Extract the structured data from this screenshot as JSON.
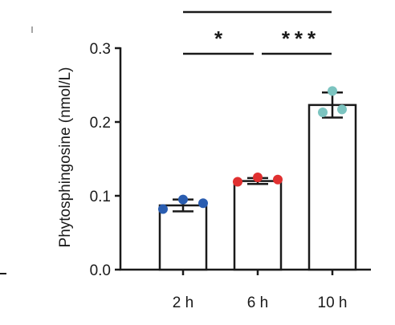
{
  "chart_data": {
    "type": "bar",
    "title": "",
    "xlabel": "",
    "ylabel": "Phytosphingosine (nmol/L)",
    "ylim": [
      0,
      0.3
    ],
    "yticks": [
      "0.0",
      "0.1",
      "0.2",
      "0.3"
    ],
    "categories": [
      "2 h",
      "6 h",
      "10 h"
    ],
    "values": [
      0.087,
      0.12,
      0.223
    ],
    "error": [
      0.008,
      0.004,
      0.017
    ],
    "points": [
      [
        0.082,
        0.095,
        0.09
      ],
      [
        0.119,
        0.125,
        0.122
      ],
      [
        0.242,
        0.213,
        0.217
      ]
    ],
    "point_colors": [
      "#2a5db0",
      "#e03030",
      "#7cc4c0"
    ],
    "significance": [
      {
        "from": 0,
        "to": 1,
        "label": "*"
      },
      {
        "from": 1,
        "to": 2,
        "label": "***"
      },
      {
        "from": 0,
        "to": 2,
        "label": ""
      }
    ]
  }
}
